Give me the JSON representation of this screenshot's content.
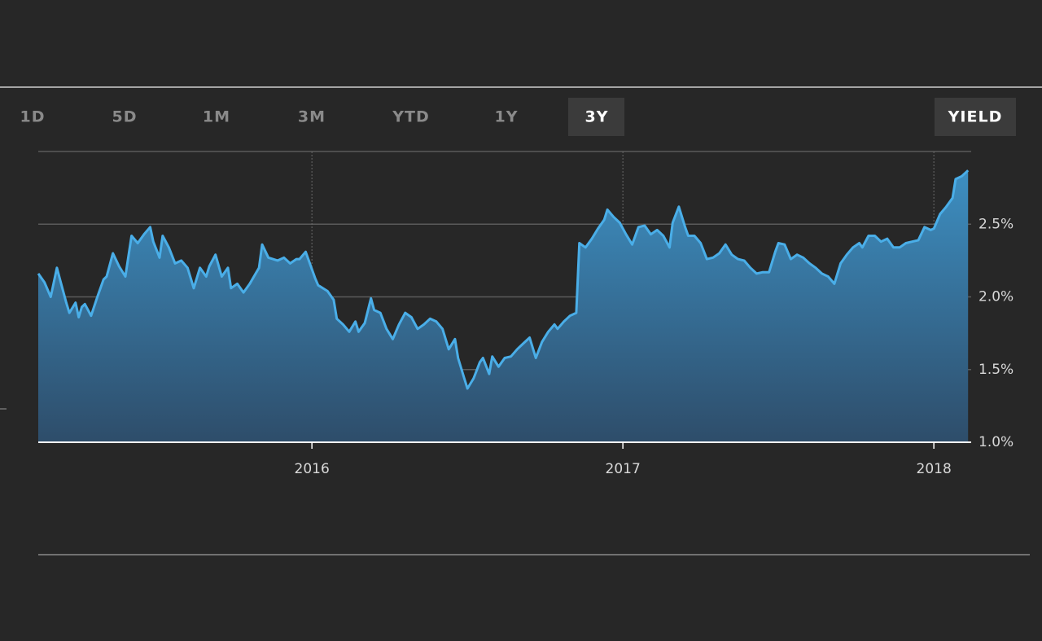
{
  "tabs": [
    "1D",
    "5D",
    "1M",
    "3M",
    "YTD",
    "1Y",
    "3Y"
  ],
  "active_tab": 6,
  "yield_button": "YIELD",
  "chart_data": {
    "type": "area",
    "x": [
      2015.12,
      2015.14,
      2015.16,
      2015.18,
      2015.19,
      2015.21,
      2015.22,
      2015.24,
      2015.25,
      2015.26,
      2015.27,
      2015.29,
      2015.31,
      2015.33,
      2015.34,
      2015.36,
      2015.38,
      2015.4,
      2015.42,
      2015.44,
      2015.46,
      2015.48,
      2015.49,
      2015.51,
      2015.52,
      2015.54,
      2015.56,
      2015.58,
      2015.6,
      2015.62,
      2015.64,
      2015.66,
      2015.67,
      2015.69,
      2015.71,
      2015.73,
      2015.74,
      2015.76,
      2015.78,
      2015.8,
      2015.83,
      2015.84,
      2015.86,
      2015.89,
      2015.91,
      2015.93,
      2015.95,
      2015.96,
      2015.98,
      2016.01,
      2016.02,
      2016.05,
      2016.07,
      2016.08,
      2016.1,
      2016.12,
      2016.14,
      2016.15,
      2016.17,
      2016.19,
      2016.2,
      2016.22,
      2016.24,
      2016.26,
      2016.28,
      2016.3,
      2016.32,
      2016.34,
      2016.36,
      2016.38,
      2016.4,
      2016.42,
      2016.44,
      2016.46,
      2016.47,
      2016.49,
      2016.5,
      2016.52,
      2016.54,
      2016.55,
      2016.57,
      2016.58,
      2016.6,
      2016.62,
      2016.64,
      2016.66,
      2016.68,
      2016.7,
      2016.72,
      2016.74,
      2016.76,
      2016.78,
      2016.79,
      2016.81,
      2016.83,
      2016.85,
      2016.86,
      2016.88,
      2016.9,
      2016.92,
      2016.94,
      2016.95,
      2016.97,
      2016.99,
      2017.01,
      2017.03,
      2017.05,
      2017.07,
      2017.09,
      2017.11,
      2017.13,
      2017.15,
      2017.16,
      2017.18,
      2017.2,
      2017.21,
      2017.23,
      2017.25,
      2017.27,
      2017.29,
      2017.31,
      2017.33,
      2017.35,
      2017.37,
      2017.39,
      2017.41,
      2017.43,
      2017.45,
      2017.47,
      2017.49,
      2017.5,
      2017.52,
      2017.54,
      2017.56,
      2017.58,
      2017.6,
      2017.62,
      2017.64,
      2017.66,
      2017.68,
      2017.7,
      2017.72,
      2017.74,
      2017.76,
      2017.77,
      2017.79,
      2017.81,
      2017.83,
      2017.85,
      2017.87,
      2017.89,
      2017.91,
      2017.93,
      2017.95,
      2017.97,
      2017.99,
      2018.0,
      2018.02,
      2018.04,
      2018.06,
      2018.07,
      2018.09,
      2018.11
    ],
    "values": [
      2.16,
      2.1,
      2.0,
      2.2,
      2.12,
      1.96,
      1.89,
      1.96,
      1.86,
      1.93,
      1.95,
      1.87,
      2.0,
      2.12,
      2.14,
      2.3,
      2.21,
      2.14,
      2.42,
      2.37,
      2.43,
      2.48,
      2.38,
      2.27,
      2.42,
      2.34,
      2.23,
      2.25,
      2.2,
      2.06,
      2.2,
      2.14,
      2.21,
      2.29,
      2.14,
      2.2,
      2.06,
      2.09,
      2.03,
      2.09,
      2.2,
      2.36,
      2.27,
      2.25,
      2.27,
      2.23,
      2.26,
      2.26,
      2.31,
      2.13,
      2.08,
      2.04,
      1.98,
      1.85,
      1.81,
      1.76,
      1.83,
      1.76,
      1.82,
      1.99,
      1.91,
      1.89,
      1.78,
      1.71,
      1.81,
      1.89,
      1.86,
      1.78,
      1.81,
      1.85,
      1.83,
      1.78,
      1.64,
      1.71,
      1.58,
      1.44,
      1.37,
      1.44,
      1.55,
      1.58,
      1.47,
      1.59,
      1.52,
      1.58,
      1.59,
      1.64,
      1.68,
      1.72,
      1.58,
      1.69,
      1.76,
      1.81,
      1.78,
      1.83,
      1.87,
      1.89,
      2.37,
      2.34,
      2.4,
      2.47,
      2.53,
      2.6,
      2.55,
      2.51,
      2.43,
      2.36,
      2.48,
      2.49,
      2.43,
      2.46,
      2.42,
      2.34,
      2.51,
      2.62,
      2.48,
      2.42,
      2.42,
      2.37,
      2.26,
      2.27,
      2.3,
      2.36,
      2.29,
      2.26,
      2.25,
      2.2,
      2.16,
      2.17,
      2.17,
      2.31,
      2.37,
      2.36,
      2.26,
      2.29,
      2.27,
      2.23,
      2.2,
      2.16,
      2.14,
      2.09,
      2.23,
      2.29,
      2.34,
      2.37,
      2.34,
      2.42,
      2.42,
      2.38,
      2.4,
      2.34,
      2.34,
      2.37,
      2.38,
      2.39,
      2.48,
      2.46,
      2.47,
      2.57,
      2.62,
      2.68,
      2.81,
      2.83,
      2.87
    ],
    "xlim": [
      2015.12,
      2018.12
    ],
    "ylim": [
      1.0,
      3.0
    ],
    "xticks": [
      2016,
      2017,
      2018
    ],
    "yticks": [
      {
        "value": 1.0,
        "label": "1.0%"
      },
      {
        "value": 1.5,
        "label": "1.5%"
      },
      {
        "value": 2.0,
        "label": "2.0%"
      },
      {
        "value": 2.5,
        "label": "2.5%"
      }
    ],
    "color": "#4aaee8",
    "grid": true
  }
}
